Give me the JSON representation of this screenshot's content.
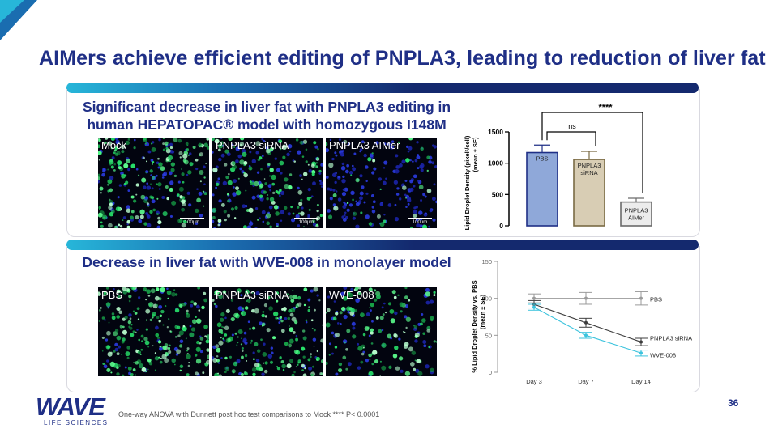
{
  "slide": {
    "title": "AIMers achieve efficient editing of PNPLA3, leading to reduction of liver fat",
    "page_number": "36",
    "footnote": "One-way ANOVA with Dunnett post hoc test comparisons to Mock **** P< 0.0001",
    "logo_text": "WAVE",
    "logo_subtext": "LIFE SCIENCES",
    "colors": {
      "title": "#1f2f86",
      "band_start": "#27b6d9",
      "band_end": "#14296e"
    }
  },
  "panel1": {
    "subtitle_line1": "Significant decrease in liver fat with PNPLA3 editing in",
    "subtitle_line2": "human HEPATOPAC® model with homozygous I148M",
    "images": [
      {
        "label": "Mock",
        "scale": "100μm"
      },
      {
        "label": "PNPLA3 siRNA",
        "scale": "100μm"
      },
      {
        "label": "PNPLA3 AIMer",
        "scale": "100μm"
      }
    ]
  },
  "panel2": {
    "subtitle": "Decrease in liver fat with WVE-008 in monolayer model",
    "images": [
      {
        "label": "PBS"
      },
      {
        "label": "PNPLA3 siRNA"
      },
      {
        "label": "WVE-008"
      }
    ]
  },
  "chart_data": [
    {
      "type": "bar",
      "ylabel_line1": "Lipid Droplet Density (pixel²/cell)",
      "ylabel_line2": "(mean ± SE)",
      "ylim": [
        0,
        1500
      ],
      "yticks": [
        "0",
        "500",
        "1000",
        "1500"
      ],
      "categories": [
        "PBS",
        "PNPLA3 siRNA",
        "PNPLA3 AIMer"
      ],
      "category_labels": [
        [
          "PBS"
        ],
        [
          "PNPLA3",
          "siRNA"
        ],
        [
          "PNPLA3",
          "AIMer"
        ]
      ],
      "values": [
        1170,
        1060,
        380
      ],
      "errors": [
        120,
        130,
        60
      ],
      "bar_colors": [
        "#8fa8d9",
        "#d8cdb4",
        "#ececec"
      ],
      "bar_edges": [
        "#1f2f86",
        "#7a6a44",
        "#6b6b6b"
      ],
      "annotations": {
        "significance_outer": "****",
        "significance_inner": "ns"
      }
    },
    {
      "type": "line",
      "ylabel_line1": "% Lipid Droplet Density vs. PBS",
      "ylabel_line2": "(mean ± SE)",
      "ylim": [
        0,
        150
      ],
      "yticks": [
        "0",
        "50",
        "100",
        "150"
      ],
      "x": [
        "Day 3",
        "Day 7",
        "Day 14"
      ],
      "series": [
        {
          "name": "PBS",
          "values": [
            100,
            100,
            100
          ],
          "errors": [
            6,
            8,
            9
          ],
          "color": "#9a9a9a"
        },
        {
          "name": "PNPLA3 siRNA",
          "values": [
            92,
            67,
            41
          ],
          "errors": [
            5,
            6,
            5
          ],
          "color": "#3d3d3d"
        },
        {
          "name": "WVE-008",
          "values": [
            88,
            50,
            26
          ],
          "errors": [
            4,
            4,
            4
          ],
          "color": "#3bc3dd"
        }
      ]
    }
  ]
}
